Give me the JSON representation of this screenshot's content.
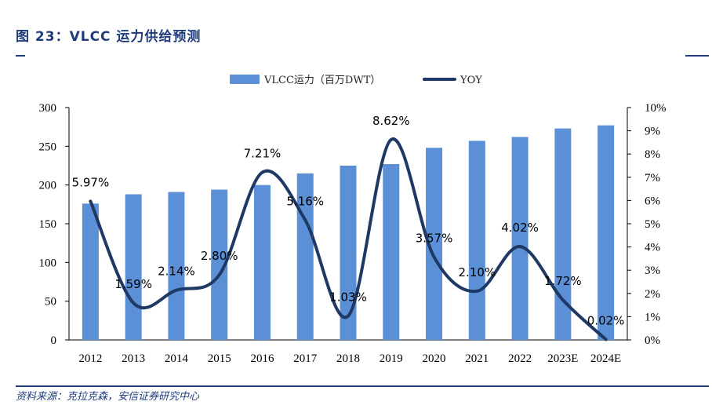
{
  "figure": {
    "title": "图 23：VLCC 运力供给预测",
    "source": "资料来源：克拉克森，安信证券研究中心"
  },
  "chart_data": {
    "type": "bar+line",
    "categories": [
      "2012",
      "2013",
      "2014",
      "2015",
      "2016",
      "2017",
      "2018",
      "2019",
      "2020",
      "2021",
      "2022",
      "2023E",
      "2024E"
    ],
    "series": [
      {
        "name": "VLCC运力（百万DWT）",
        "type": "bar",
        "axis": "left",
        "color": "#5b8fd6",
        "values": [
          176,
          188,
          191,
          194,
          200,
          215,
          225,
          227,
          248,
          257,
          262,
          273,
          277
        ]
      },
      {
        "name": "YOY",
        "type": "line",
        "axis": "right",
        "color": "#1f3864",
        "values": [
          5.97,
          1.59,
          2.14,
          2.8,
          7.21,
          5.16,
          1.03,
          8.62,
          3.57,
          2.1,
          4.02,
          1.72,
          0.02
        ],
        "labels": [
          "5.97%",
          "1.59%",
          "2.14%",
          "2.80%",
          "7.21%",
          "5.16%",
          "1.03%",
          "8.62%",
          "3.57%",
          "2.10%",
          "4.02%",
          "1.72%",
          "0.02%"
        ]
      }
    ],
    "y_left": {
      "ylim": [
        0,
        300
      ],
      "ticks": [
        "0",
        "50",
        "100",
        "150",
        "200",
        "250",
        "300"
      ]
    },
    "y_right": {
      "ylim": [
        0,
        10
      ],
      "ticks": [
        "0%",
        "1%",
        "2%",
        "3%",
        "4%",
        "5%",
        "6%",
        "7%",
        "8%",
        "9%",
        "10%"
      ]
    },
    "legend_position": "top-center",
    "grid": false
  }
}
